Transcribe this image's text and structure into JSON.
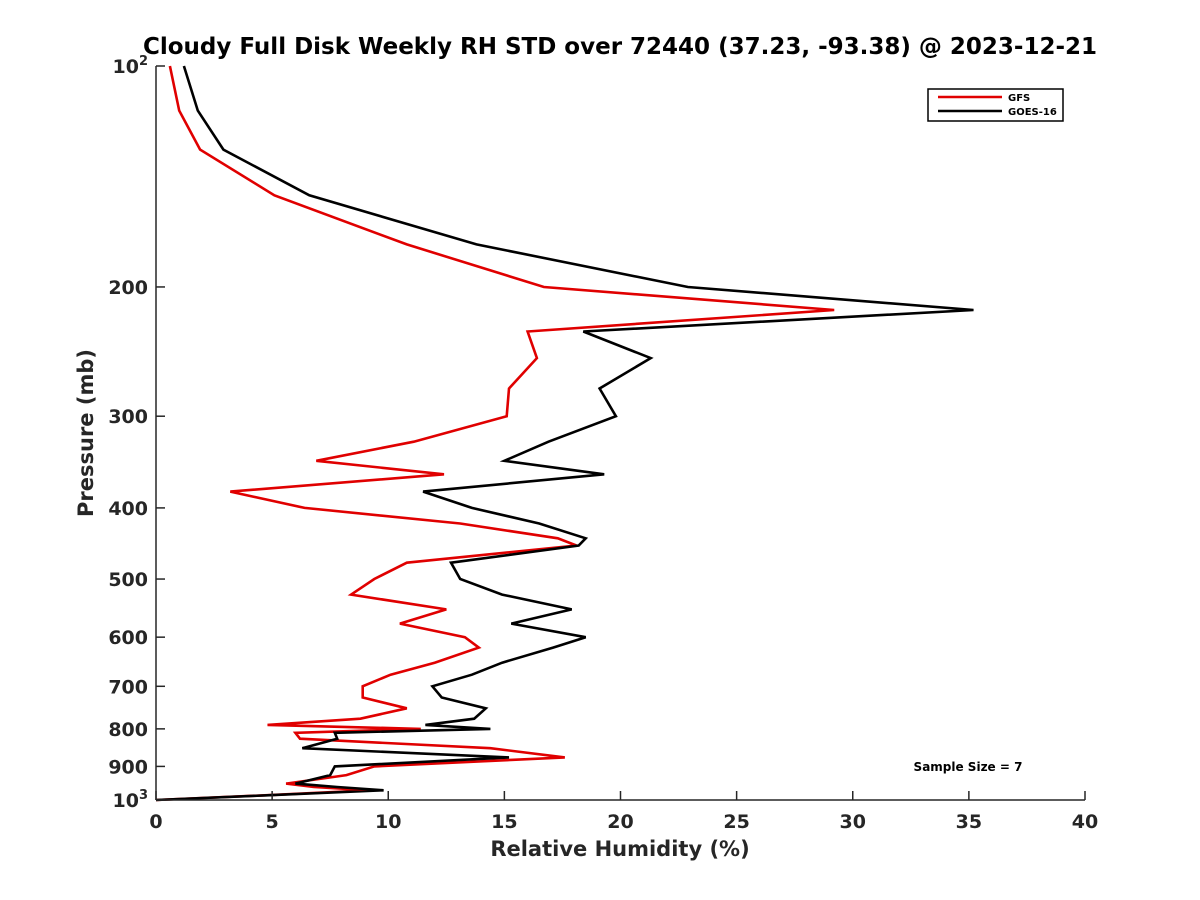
{
  "chart_data": {
    "type": "line",
    "title": "Cloudy Full Disk Weekly RH STD over 72440 (37.23, -93.38) @ 2023-12-21",
    "xlabel": "Relative Humidity (%)",
    "ylabel": "Pressure (mb)",
    "xlim": [
      0,
      40
    ],
    "ylim": [
      100,
      1000
    ],
    "y_scale": "log",
    "y_reversed": true,
    "grid": false,
    "legend_position": "top-right",
    "x_ticks": [
      "0",
      "5",
      "10",
      "15",
      "20",
      "25",
      "30",
      "35",
      "40"
    ],
    "y_ticks": [
      {
        "value": 100,
        "label": "10",
        "sup": "2"
      },
      {
        "value": 200,
        "label": "200",
        "sup": ""
      },
      {
        "value": 300,
        "label": "300",
        "sup": ""
      },
      {
        "value": 400,
        "label": "400",
        "sup": ""
      },
      {
        "value": 500,
        "label": "500",
        "sup": ""
      },
      {
        "value": 600,
        "label": "600",
        "sup": ""
      },
      {
        "value": 700,
        "label": "700",
        "sup": ""
      },
      {
        "value": 800,
        "label": "800",
        "sup": ""
      },
      {
        "value": 900,
        "label": "900",
        "sup": ""
      },
      {
        "value": 1000,
        "label": "10",
        "sup": "3"
      }
    ],
    "series": [
      {
        "name": "GFS",
        "color": "#e00000",
        "points": [
          [
            0.6,
            100
          ],
          [
            1.0,
            115
          ],
          [
            1.9,
            130
          ],
          [
            5.1,
            150
          ],
          [
            10.8,
            175
          ],
          [
            16.7,
            200
          ],
          [
            29.2,
            215
          ],
          [
            16.0,
            230
          ],
          [
            16.4,
            250
          ],
          [
            15.2,
            275
          ],
          [
            15.1,
            300
          ],
          [
            11.1,
            325
          ],
          [
            6.9,
            345
          ],
          [
            12.4,
            360
          ],
          [
            3.2,
            380
          ],
          [
            6.4,
            400
          ],
          [
            13.1,
            420
          ],
          [
            17.3,
            440
          ],
          [
            18.1,
            450
          ],
          [
            10.8,
            475
          ],
          [
            9.4,
            500
          ],
          [
            8.4,
            525
          ],
          [
            12.5,
            550
          ],
          [
            10.5,
            575
          ],
          [
            13.3,
            600
          ],
          [
            13.9,
            620
          ],
          [
            12.0,
            650
          ],
          [
            10.1,
            675
          ],
          [
            8.9,
            700
          ],
          [
            8.9,
            725
          ],
          [
            10.8,
            750
          ],
          [
            8.8,
            775
          ],
          [
            4.8,
            790
          ],
          [
            11.4,
            800
          ],
          [
            6.0,
            810
          ],
          [
            6.2,
            825
          ],
          [
            14.4,
            850
          ],
          [
            17.6,
            875
          ],
          [
            9.4,
            900
          ],
          [
            8.2,
            925
          ],
          [
            5.6,
            950
          ],
          [
            6.8,
            960
          ],
          [
            9.2,
            970
          ],
          [
            4.8,
            985
          ],
          [
            0.0,
            1000
          ]
        ]
      },
      {
        "name": "GOES-16",
        "color": "#000000",
        "points": [
          [
            1.2,
            100
          ],
          [
            1.8,
            115
          ],
          [
            2.9,
            130
          ],
          [
            6.6,
            150
          ],
          [
            13.8,
            175
          ],
          [
            22.9,
            200
          ],
          [
            35.2,
            215
          ],
          [
            18.4,
            230
          ],
          [
            21.3,
            250
          ],
          [
            19.1,
            275
          ],
          [
            19.8,
            300
          ],
          [
            16.9,
            325
          ],
          [
            15.0,
            345
          ],
          [
            19.3,
            360
          ],
          [
            11.5,
            380
          ],
          [
            13.6,
            400
          ],
          [
            16.5,
            420
          ],
          [
            18.5,
            440
          ],
          [
            18.2,
            450
          ],
          [
            12.7,
            475
          ],
          [
            13.1,
            500
          ],
          [
            14.9,
            525
          ],
          [
            17.9,
            550
          ],
          [
            15.3,
            575
          ],
          [
            18.5,
            600
          ],
          [
            17.1,
            620
          ],
          [
            14.9,
            650
          ],
          [
            13.6,
            675
          ],
          [
            11.9,
            700
          ],
          [
            12.3,
            725
          ],
          [
            14.2,
            750
          ],
          [
            13.7,
            775
          ],
          [
            11.6,
            790
          ],
          [
            14.4,
            800
          ],
          [
            7.7,
            810
          ],
          [
            7.8,
            825
          ],
          [
            6.3,
            850
          ],
          [
            15.2,
            875
          ],
          [
            7.7,
            900
          ],
          [
            7.5,
            925
          ],
          [
            6.0,
            950
          ],
          [
            7.8,
            960
          ],
          [
            9.8,
            970
          ],
          [
            4.9,
            985
          ],
          [
            0.0,
            1000
          ]
        ]
      }
    ],
    "annotation": "Sample Size = 7"
  }
}
